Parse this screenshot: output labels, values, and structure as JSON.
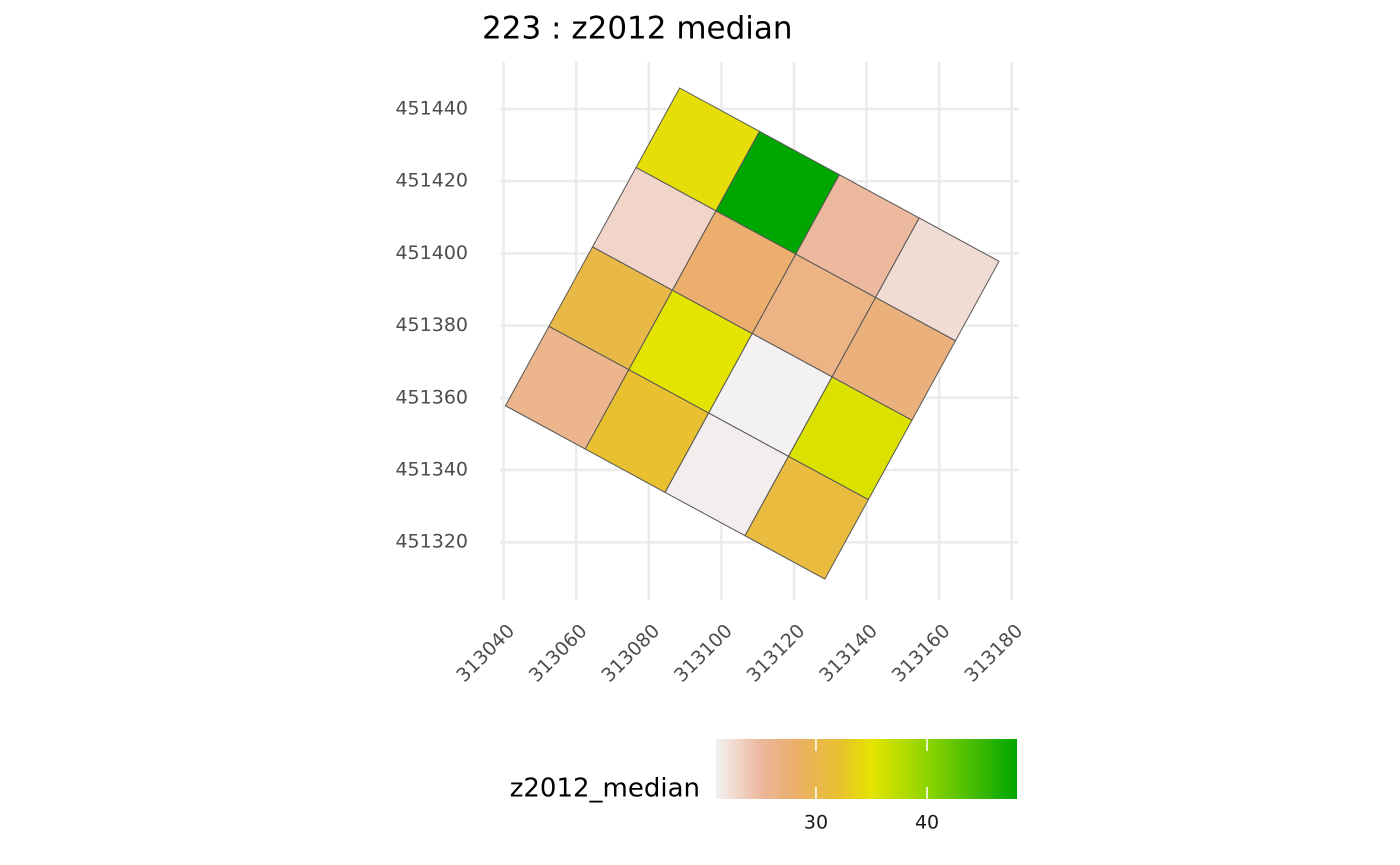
{
  "chart_data": {
    "type": "tilemap",
    "title": "223 : z2012 median",
    "xlim": [
      313039,
      313182
    ],
    "ylim": [
      451304,
      451453
    ],
    "xticks": [
      313040,
      313060,
      313080,
      313100,
      313120,
      313140,
      313160,
      313180
    ],
    "yticks": [
      451320,
      451340,
      451360,
      451380,
      451400,
      451420,
      451440
    ],
    "grid": true,
    "border_color": "#555555",
    "legend": {
      "title": "z2012_median",
      "limits": [
        21,
        48.1
      ],
      "ticks": [
        30,
        40
      ]
    },
    "colorscale": [
      {
        "value": 21,
        "color": "#f3f1f1"
      },
      {
        "value": 25,
        "color": "#ecb89e"
      },
      {
        "value": 28,
        "color": "#ebae6c"
      },
      {
        "value": 32,
        "color": "#e8c030"
      },
      {
        "value": 35,
        "color": "#e4e400"
      },
      {
        "value": 40,
        "color": "#8fd400"
      },
      {
        "value": 48.1,
        "color": "#00a600"
      }
    ],
    "tiles": [
      {
        "x": [
          313040.5,
          313052.5,
          313074.5,
          313062.5
        ],
        "y": [
          451357.8,
          451379.8,
          451367.8,
          451345.8
        ],
        "value": 26
      },
      {
        "x": [
          313062.5,
          313074.5,
          313096.5,
          313084.5
        ],
        "y": [
          451345.8,
          451367.8,
          451355.8,
          451333.8
        ],
        "value": 32
      },
      {
        "x": [
          313084.5,
          313096.5,
          313118.5,
          313106.5
        ],
        "y": [
          451333.8,
          451355.8,
          451343.8,
          451321.8
        ],
        "value": 21.2
      },
      {
        "x": [
          313106.5,
          313118.5,
          313140.5,
          313128.5
        ],
        "y": [
          451321.8,
          451343.8,
          451331.8,
          451309.8
        ],
        "value": 31
      },
      {
        "x": [
          313052.5,
          313064.5,
          313086.5,
          313074.5
        ],
        "y": [
          451379.8,
          451401.8,
          451389.8,
          451367.8
        ],
        "value": 30.5
      },
      {
        "x": [
          313074.5,
          313086.5,
          313108.5,
          313096.5
        ],
        "y": [
          451367.8,
          451389.8,
          451377.8,
          451355.8
        ],
        "value": 35
      },
      {
        "x": [
          313096.5,
          313108.5,
          313130.5,
          313118.5
        ],
        "y": [
          451355.8,
          451377.8,
          451365.8,
          451343.8
        ],
        "value": 21
      },
      {
        "x": [
          313118.5,
          313130.5,
          313152.5,
          313140.5
        ],
        "y": [
          451343.8,
          451365.8,
          451353.8,
          451331.8
        ],
        "value": 35.5
      },
      {
        "x": [
          313064.5,
          313076.5,
          313098.5,
          313086.5
        ],
        "y": [
          451401.8,
          451423.8,
          451411.8,
          451389.8
        ],
        "value": 23
      },
      {
        "x": [
          313086.5,
          313098.5,
          313120.5,
          313108.5
        ],
        "y": [
          451389.8,
          451411.8,
          451399.8,
          451377.8
        ],
        "value": 28
      },
      {
        "x": [
          313108.5,
          313120.5,
          313142.5,
          313130.5
        ],
        "y": [
          451377.8,
          451399.8,
          451387.8,
          451365.8
        ],
        "value": 26.5
      },
      {
        "x": [
          313130.5,
          313142.5,
          313164.5,
          313152.5
        ],
        "y": [
          451365.8,
          451387.8,
          451375.8,
          451353.8
        ],
        "value": 27
      },
      {
        "x": [
          313076.5,
          313088.5,
          313110.5,
          313098.5
        ],
        "y": [
          451423.8,
          451445.8,
          451433.8,
          451411.8
        ],
        "value": 34.5
      },
      {
        "x": [
          313098.5,
          313110.5,
          313132.5,
          313120.5
        ],
        "y": [
          451411.8,
          451433.8,
          451421.8,
          451399.8
        ],
        "value": 48.1
      },
      {
        "x": [
          313120.5,
          313132.5,
          313154.5,
          313142.5
        ],
        "y": [
          451399.8,
          451421.8,
          451409.8,
          451387.8
        ],
        "value": 25
      },
      {
        "x": [
          313142.5,
          313154.5,
          313176.5,
          313164.5
        ],
        "y": [
          451387.8,
          451409.8,
          451397.8,
          451375.8
        ],
        "value": 22.5
      }
    ]
  }
}
